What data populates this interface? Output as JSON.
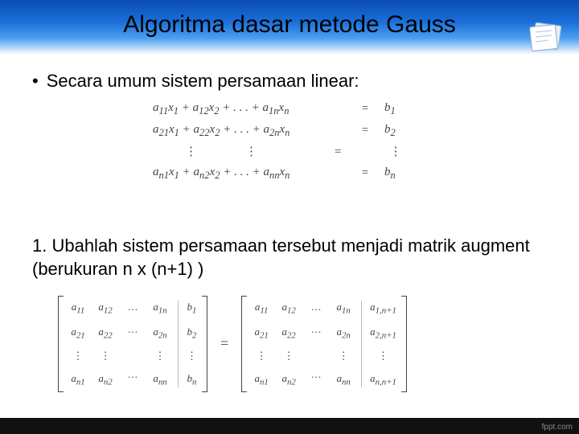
{
  "title": "Algoritma dasar metode Gauss",
  "bullet_text": "Secara umum sistem persamaan linear:",
  "equations": {
    "rows": [
      {
        "lhs": "a<sub>11</sub>x<sub>1</sub> + a<sub>12</sub>x<sub>2</sub> + . . . + a<sub>1n</sub>x<sub>n</sub>",
        "rhs": "b<sub>1</sub>"
      },
      {
        "lhs": "a<sub>21</sub>x<sub>1</sub> + a<sub>22</sub>x<sub>2</sub> + . . . + a<sub>2n</sub>x<sub>n</sub>",
        "rhs": "b<sub>2</sub>"
      },
      {
        "lhs": "a<sub>n1</sub>x<sub>1</sub> + a<sub>n2</sub>x<sub>2</sub> + . . . + a<sub>nn</sub>x<sub>n</sub>",
        "rhs": "b<sub>n</sub>"
      }
    ],
    "eq_symbol": "=",
    "text_color": "#444444"
  },
  "step_text": "1. Ubahlah sistem persamaan tersebut menjadi matrik augment (berukuran n x (n+1) )",
  "matrix_left": {
    "cols": [
      [
        "a<sub>11</sub>",
        "a<sub>21</sub>",
        "⋮",
        "a<sub>n1</sub>"
      ],
      [
        "a<sub>12</sub>",
        "a<sub>22</sub>",
        "⋮",
        "a<sub>n2</sub>"
      ],
      [
        "…",
        "…",
        "",
        "…"
      ],
      [
        "a<sub>1n</sub>",
        "a<sub>2n</sub>",
        "⋮",
        "a<sub>nn</sub>"
      ]
    ],
    "aug": [
      "b<sub>1</sub>",
      "b<sub>2</sub>",
      "⋮",
      "b<sub>n</sub>"
    ]
  },
  "matrix_right": {
    "cols": [
      [
        "a<sub>11</sub>",
        "a<sub>21</sub>",
        "⋮",
        "a<sub>n1</sub>"
      ],
      [
        "a<sub>12</sub>",
        "a<sub>22</sub>",
        "⋮",
        "a<sub>n2</sub>"
      ],
      [
        "…",
        "…",
        "",
        "…"
      ],
      [
        "a<sub>1n</sub>",
        "a<sub>2n</sub>",
        "⋮",
        "a<sub>nn</sub>"
      ]
    ],
    "aug": [
      "a<sub>1,n+1</sub>",
      "a<sub>2,n+1</sub>",
      "⋮",
      "a<sub>n,n+1</sub>"
    ]
  },
  "footer": "fppt.com",
  "colors": {
    "header_gradient": [
      "#0a4db3",
      "#1a6fd8",
      "#4a9ff0",
      "#ffffff"
    ],
    "title_color": "#000000",
    "body_color": "#000000",
    "footer_bg": "#111111",
    "footer_text": "#888888"
  },
  "fonts": {
    "title_size": 30,
    "body_size": 22,
    "math_size": 15,
    "matrix_size": 13
  }
}
